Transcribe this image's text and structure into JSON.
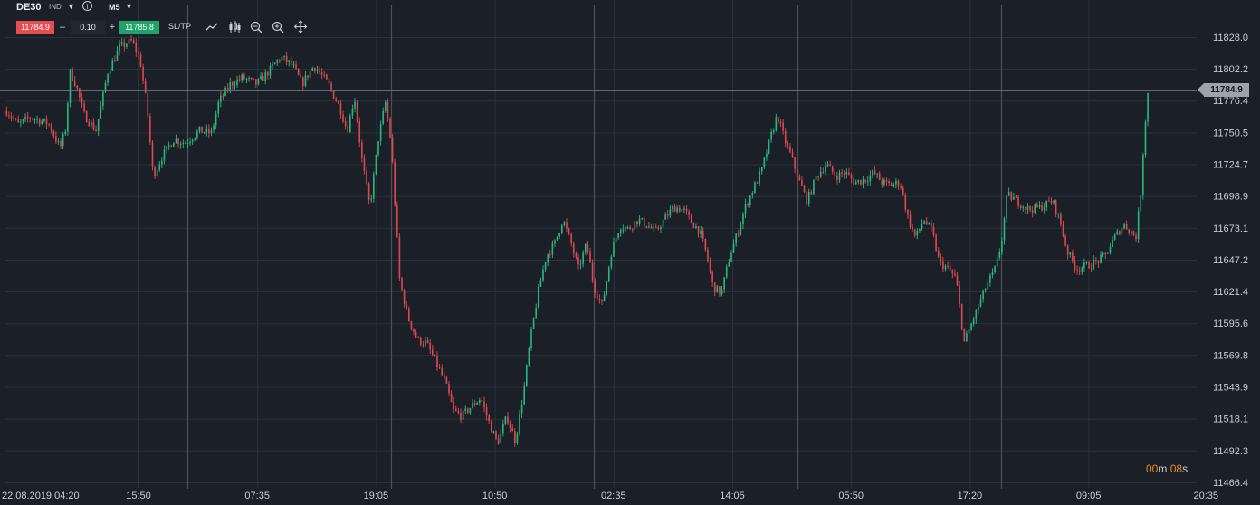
{
  "toolbar": {
    "symbol": "DE30",
    "symbol_class": "IND",
    "timeframe": "M5",
    "sell_price": "11784.9",
    "volume": "0.10",
    "buy_price": "11785.8",
    "sltp_label": "SL/TP",
    "minus": "–",
    "plus": "+",
    "info": "i"
  },
  "current_price_label": "11784.9",
  "candle_timer": {
    "minutes": "00",
    "m": "m",
    "seconds": "08",
    "s": "s"
  },
  "colors": {
    "background": "#1b2028",
    "up": "#27b981",
    "down": "#e0484f",
    "grid": "#2b323c",
    "text": "#c9ced6",
    "separator": "#4a525d"
  },
  "chart_data": {
    "type": "candlestick",
    "y_ticks": [
      "11828.0",
      "11802.2",
      "11776.4",
      "11750.5",
      "11724.7",
      "11698.9",
      "11673.1",
      "11647.2",
      "11621.4",
      "11595.6",
      "11569.8",
      "11543.9",
      "11518.1",
      "11492.3",
      "11466.4"
    ],
    "x_ticks": [
      "22.08.2019 04:20",
      "15:50",
      "07:35",
      "19:05",
      "10:50",
      "02:35",
      "14:05",
      "05:50",
      "17:20",
      "09:05",
      "20:35"
    ],
    "ylim": [
      11466.4,
      11828.0
    ],
    "current_price": 11784.9,
    "path": [
      [
        0,
        11768
      ],
      [
        0.01,
        11757
      ],
      [
        0.02,
        11763
      ],
      [
        0.035,
        11758
      ],
      [
        0.045,
        11738
      ],
      [
        0.05,
        11755
      ],
      [
        0.053,
        11800
      ],
      [
        0.058,
        11790
      ],
      [
        0.065,
        11765
      ],
      [
        0.075,
        11752
      ],
      [
        0.085,
        11800
      ],
      [
        0.095,
        11820
      ],
      [
        0.105,
        11825
      ],
      [
        0.112,
        11810
      ],
      [
        0.118,
        11770
      ],
      [
        0.123,
        11715
      ],
      [
        0.13,
        11730
      ],
      [
        0.14,
        11745
      ],
      [
        0.15,
        11742
      ],
      [
        0.162,
        11752
      ],
      [
        0.172,
        11750
      ],
      [
        0.178,
        11775
      ],
      [
        0.188,
        11790
      ],
      [
        0.198,
        11795
      ],
      [
        0.21,
        11790
      ],
      [
        0.22,
        11800
      ],
      [
        0.23,
        11812
      ],
      [
        0.24,
        11805
      ],
      [
        0.248,
        11790
      ],
      [
        0.258,
        11805
      ],
      [
        0.27,
        11790
      ],
      [
        0.28,
        11770
      ],
      [
        0.286,
        11752
      ],
      [
        0.292,
        11780
      ],
      [
        0.298,
        11730
      ],
      [
        0.305,
        11690
      ],
      [
        0.312,
        11745
      ],
      [
        0.318,
        11775
      ],
      [
        0.323,
        11740
      ],
      [
        0.33,
        11630
      ],
      [
        0.337,
        11600
      ],
      [
        0.345,
        11582
      ],
      [
        0.352,
        11580
      ],
      [
        0.36,
        11565
      ],
      [
        0.368,
        11548
      ],
      [
        0.375,
        11525
      ],
      [
        0.382,
        11520
      ],
      [
        0.39,
        11528
      ],
      [
        0.398,
        11535
      ],
      [
        0.405,
        11515
      ],
      [
        0.412,
        11498
      ],
      [
        0.42,
        11520
      ],
      [
        0.427,
        11500
      ],
      [
        0.434,
        11540
      ],
      [
        0.44,
        11585
      ],
      [
        0.447,
        11625
      ],
      [
        0.453,
        11650
      ],
      [
        0.46,
        11660
      ],
      [
        0.467,
        11680
      ],
      [
        0.474,
        11660
      ],
      [
        0.48,
        11640
      ],
      [
        0.487,
        11660
      ],
      [
        0.493,
        11625
      ],
      [
        0.5,
        11610
      ],
      [
        0.508,
        11655
      ],
      [
        0.515,
        11675
      ],
      [
        0.522,
        11672
      ],
      [
        0.53,
        11680
      ],
      [
        0.538,
        11675
      ],
      [
        0.545,
        11670
      ],
      [
        0.552,
        11680
      ],
      [
        0.56,
        11690
      ],
      [
        0.568,
        11688
      ],
      [
        0.575,
        11678
      ],
      [
        0.582,
        11670
      ],
      [
        0.588,
        11650
      ],
      [
        0.593,
        11625
      ],
      [
        0.6,
        11620
      ],
      [
        0.607,
        11650
      ],
      [
        0.614,
        11670
      ],
      [
        0.62,
        11690
      ],
      [
        0.627,
        11705
      ],
      [
        0.634,
        11720
      ],
      [
        0.641,
        11745
      ],
      [
        0.647,
        11765
      ],
      [
        0.653,
        11745
      ],
      [
        0.659,
        11730
      ],
      [
        0.665,
        11712
      ],
      [
        0.672,
        11695
      ],
      [
        0.68,
        11715
      ],
      [
        0.688,
        11725
      ],
      [
        0.696,
        11715
      ],
      [
        0.704,
        11718
      ],
      [
        0.712,
        11710
      ],
      [
        0.72,
        11712
      ],
      [
        0.728,
        11718
      ],
      [
        0.735,
        11710
      ],
      [
        0.742,
        11708
      ],
      [
        0.75,
        11710
      ],
      [
        0.757,
        11680
      ],
      [
        0.763,
        11665
      ],
      [
        0.77,
        11680
      ],
      [
        0.777,
        11670
      ],
      [
        0.783,
        11645
      ],
      [
        0.79,
        11640
      ],
      [
        0.797,
        11632
      ],
      [
        0.804,
        11580
      ],
      [
        0.81,
        11595
      ],
      [
        0.816,
        11610
      ],
      [
        0.822,
        11625
      ],
      [
        0.83,
        11640
      ],
      [
        0.835,
        11660
      ],
      [
        0.84,
        11700
      ],
      [
        0.848,
        11695
      ],
      [
        0.858,
        11688
      ],
      [
        0.868,
        11690
      ],
      [
        0.878,
        11695
      ],
      [
        0.884,
        11680
      ],
      [
        0.89,
        11655
      ],
      [
        0.898,
        11640
      ],
      [
        0.906,
        11642
      ],
      [
        0.914,
        11645
      ],
      [
        0.922,
        11650
      ],
      [
        0.93,
        11665
      ],
      [
        0.938,
        11676
      ],
      [
        0.944,
        11670
      ],
      [
        0.948,
        11665
      ],
      [
        0.952,
        11700
      ],
      [
        0.955,
        11750
      ],
      [
        0.958,
        11782
      ],
      [
        0.96,
        11785
      ]
    ]
  }
}
